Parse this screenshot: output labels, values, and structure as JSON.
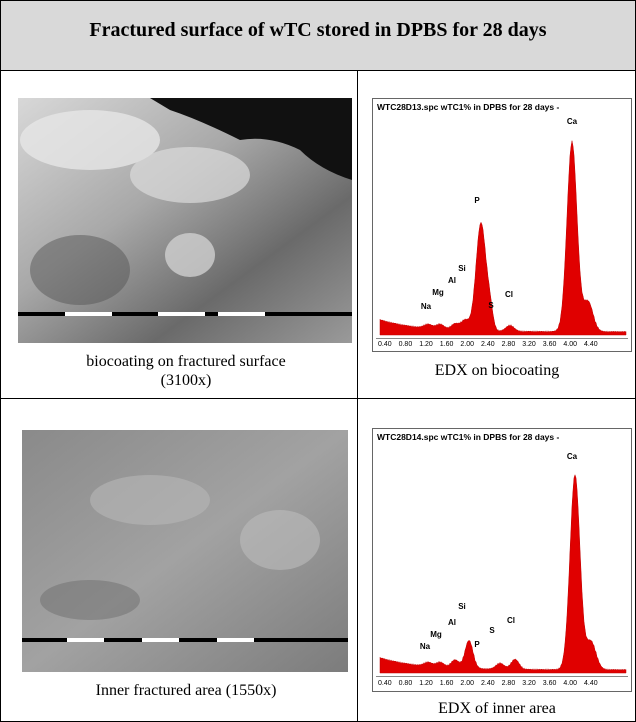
{
  "header": {
    "title": "Fractured surface of wTC stored in DPBS for 28 days"
  },
  "rows": [
    {
      "image": {
        "caption": [
          "biocoating on fractured surface",
          "(3100x)"
        ]
      },
      "spectrum": {
        "title": "WTC28D13.spc wTC1% in DPBS for 28 days -",
        "elements": [
          "Ca",
          "P",
          "Si",
          "Al",
          "Mg",
          "Na",
          "S",
          "Cl"
        ],
        "ticks": [
          "0.40",
          "0.80",
          "1.20",
          "1.60",
          "2.00",
          "2.40",
          "2.80",
          "3.20",
          "3.60",
          "4.00",
          "4.40"
        ],
        "caption": "EDX on biocoating"
      }
    },
    {
      "image": {
        "caption": [
          "Inner fractured area (1550x)"
        ]
      },
      "spectrum": {
        "title": "WTC28D14.spc wTC1% in DPBS for 28 days -",
        "elements": [
          "Ca",
          "Si",
          "Al",
          "Mg",
          "Na",
          "P",
          "S",
          "Cl"
        ],
        "ticks": [
          "0.40",
          "0.80",
          "1.20",
          "1.60",
          "2.00",
          "2.40",
          "2.80",
          "3.20",
          "3.60",
          "4.00",
          "4.40"
        ],
        "caption": "EDX of inner area"
      }
    }
  ]
}
